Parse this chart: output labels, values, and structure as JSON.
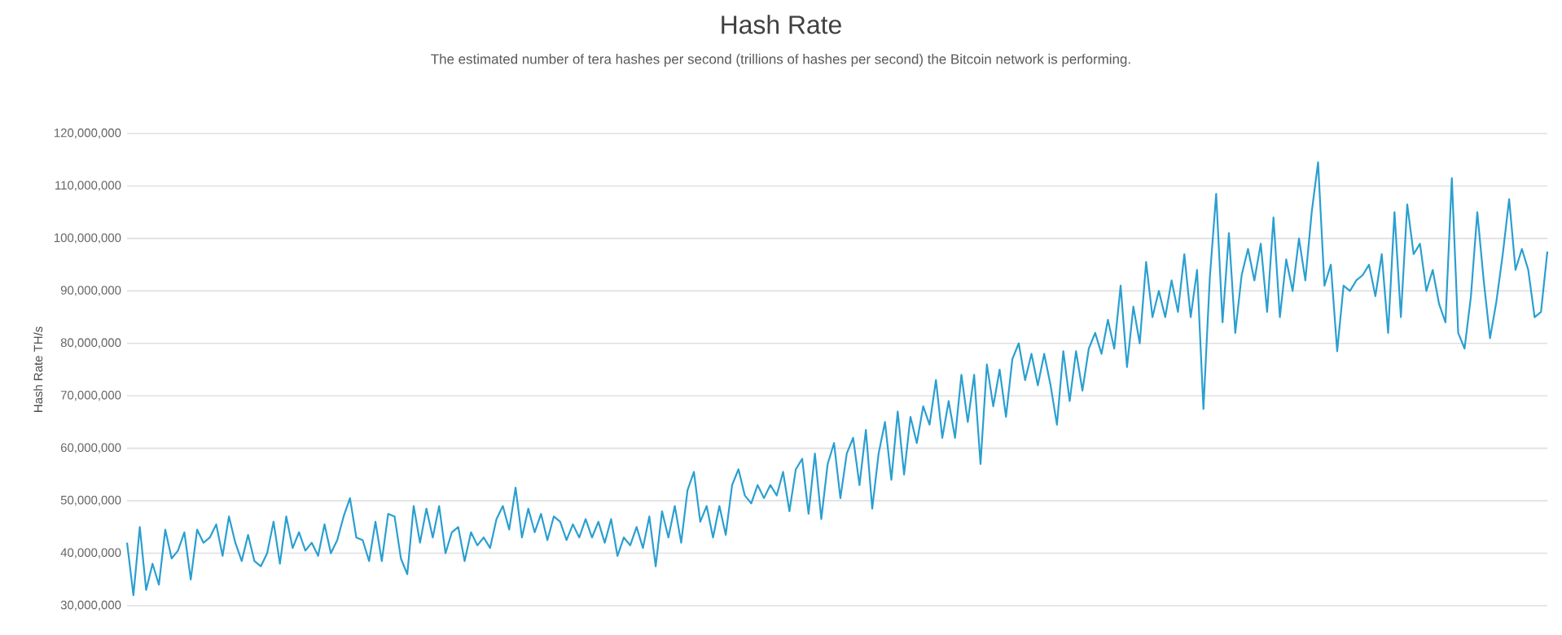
{
  "chart_data": {
    "type": "line",
    "title": "Hash Rate",
    "subtitle": "The estimated number of tera hashes per second (trillions of hashes per second) the Bitcoin network is performing.",
    "ylabel": "Hash Rate TH/s",
    "color": "#2a9fd0",
    "grid": "y",
    "tick_labels": "y",
    "ylim": [
      30000000,
      120000000
    ],
    "yticks": [
      {
        "value": 30000000,
        "label": "30,000,000"
      },
      {
        "value": 40000000,
        "label": "40,000,000"
      },
      {
        "value": 50000000,
        "label": "50,000,000"
      },
      {
        "value": 60000000,
        "label": "60,000,000"
      },
      {
        "value": 70000000,
        "label": "70,000,000"
      },
      {
        "value": 80000000,
        "label": "80,000,000"
      },
      {
        "value": 90000000,
        "label": "90,000,000"
      },
      {
        "value": 100000000,
        "label": "100,000,000"
      },
      {
        "value": 110000000,
        "label": "110,000,000"
      },
      {
        "value": 120000000,
        "label": "120,000,000"
      }
    ],
    "categories": [
      null,
      null,
      null,
      null,
      null,
      null,
      null,
      null,
      null,
      null,
      null,
      null,
      null,
      null,
      null,
      null,
      null,
      null,
      null,
      null,
      null,
      null,
      null,
      null,
      null,
      null,
      null,
      null,
      null,
      null,
      null,
      null,
      null,
      null,
      null,
      null,
      null,
      null,
      null,
      null,
      null,
      null,
      null,
      null,
      null,
      null,
      null,
      null,
      null,
      null,
      null,
      null,
      null,
      null,
      null,
      null,
      null,
      null,
      null,
      null,
      null,
      null,
      null,
      null,
      null,
      null,
      null,
      null,
      null,
      null,
      null,
      null,
      null,
      null,
      null,
      null,
      null,
      null,
      null,
      null,
      null,
      null,
      null,
      null,
      null,
      null,
      null,
      null,
      null,
      null,
      null,
      null,
      null,
      null,
      null,
      null,
      null,
      null,
      null,
      null,
      null,
      null,
      null,
      null,
      null,
      null,
      null,
      null,
      null,
      null,
      null,
      null,
      null,
      null,
      null,
      null,
      null,
      null,
      null,
      null,
      null,
      null,
      null,
      null,
      null,
      null,
      null,
      null,
      null,
      null,
      null,
      null,
      null,
      null,
      null,
      null,
      null,
      null,
      null,
      null,
      null,
      null,
      null,
      null,
      null,
      null,
      null,
      null,
      null,
      null,
      null,
      null,
      null,
      null,
      null,
      null,
      null,
      null,
      null,
      null,
      null,
      null,
      null,
      null,
      null,
      null,
      null,
      null,
      null,
      null,
      null,
      null,
      null,
      null,
      null,
      null,
      null,
      null,
      null,
      null,
      null,
      null,
      null,
      null,
      null,
      null,
      null,
      null,
      null,
      null,
      null,
      null,
      null,
      null,
      null,
      null,
      null,
      null,
      null,
      null,
      null,
      null,
      null,
      null,
      null,
      null,
      null,
      null,
      null,
      null,
      null,
      null,
      null,
      null,
      null,
      null,
      null,
      null,
      null,
      null,
      null,
      null,
      null,
      null
    ],
    "values": [
      42000000,
      32000000,
      45000000,
      33000000,
      38000000,
      34000000,
      44500000,
      39000000,
      40500000,
      44000000,
      35000000,
      44500000,
      42000000,
      43000000,
      45500000,
      39500000,
      47000000,
      42000000,
      38500000,
      43500000,
      38500000,
      37500000,
      40000000,
      46000000,
      38000000,
      47000000,
      41000000,
      44000000,
      40500000,
      42000000,
      39500000,
      45500000,
      40000000,
      42500000,
      47000000,
      50500000,
      43000000,
      42500000,
      38500000,
      46000000,
      38500000,
      47500000,
      47000000,
      39000000,
      36000000,
      49000000,
      42000000,
      48500000,
      43000000,
      49000000,
      40000000,
      44000000,
      45000000,
      38500000,
      44000000,
      41500000,
      43000000,
      41000000,
      46500000,
      49000000,
      44500000,
      52500000,
      43000000,
      48500000,
      44000000,
      47500000,
      42500000,
      47000000,
      46000000,
      42500000,
      45500000,
      43000000,
      46500000,
      43000000,
      46000000,
      42000000,
      46500000,
      39500000,
      43000000,
      41500000,
      45000000,
      41000000,
      47000000,
      37500000,
      48000000,
      43000000,
      49000000,
      42000000,
      52000000,
      55500000,
      46000000,
      49000000,
      43000000,
      49000000,
      43500000,
      53000000,
      56000000,
      51000000,
      49500000,
      53000000,
      50500000,
      53000000,
      51000000,
      55500000,
      48000000,
      56000000,
      58000000,
      47500000,
      59000000,
      46500000,
      57000000,
      61000000,
      50500000,
      59000000,
      62000000,
      53000000,
      63500000,
      48500000,
      59000000,
      65000000,
      54000000,
      67000000,
      55000000,
      66000000,
      61000000,
      68000000,
      64500000,
      73000000,
      62000000,
      69000000,
      62000000,
      74000000,
      65000000,
      74000000,
      57000000,
      76000000,
      68000000,
      75000000,
      66000000,
      77000000,
      80000000,
      73000000,
      78000000,
      72000000,
      78000000,
      72000000,
      64500000,
      78500000,
      69000000,
      78500000,
      71000000,
      79000000,
      82000000,
      78000000,
      84500000,
      79000000,
      91000000,
      75500000,
      87000000,
      80000000,
      95500000,
      85000000,
      90000000,
      85000000,
      92000000,
      86000000,
      97000000,
      85000000,
      94000000,
      67500000,
      92500000,
      108500000,
      84000000,
      101000000,
      82000000,
      93000000,
      98000000,
      92000000,
      99000000,
      86000000,
      104000000,
      85000000,
      96000000,
      90000000,
      100000000,
      92000000,
      105000000,
      114500000,
      91000000,
      95000000,
      78500000,
      91000000,
      90000000,
      92000000,
      93000000,
      95000000,
      89000000,
      97000000,
      82000000,
      105000000,
      85000000,
      106500000,
      97000000,
      99000000,
      90000000,
      94000000,
      87500000,
      84000000,
      111500000,
      82000000,
      79000000,
      89000000,
      105000000,
      92000000,
      81000000,
      88000000,
      97000000,
      107500000,
      94000000,
      98000000,
      94000000,
      85000000,
      86000000,
      97500000
    ]
  }
}
